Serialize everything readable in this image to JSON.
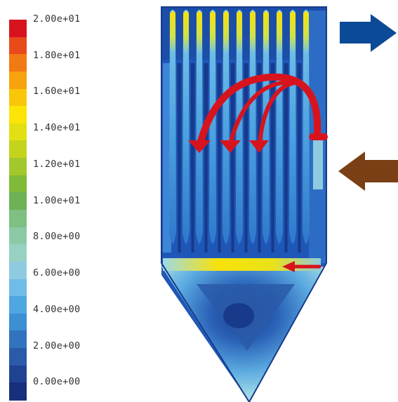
{
  "legend": {
    "labels": [
      "2.00e+01",
      "1.80e+01",
      "1.60e+01",
      "1.40e+01",
      "1.20e+01",
      "1.00e+01",
      "8.00e+00",
      "6.00e+00",
      "4.00e+00",
      "2.00e+00",
      "0.00e+00"
    ],
    "colors": [
      "#d7141e",
      "#e84a1a",
      "#f27a14",
      "#f7a30d",
      "#f9c70a",
      "#fbe406",
      "#e2e012",
      "#c4d41c",
      "#a2c82c",
      "#7fba38",
      "#6db254",
      "#7ebf82",
      "#8ccaa6",
      "#97d1c2",
      "#8fcbe0",
      "#6fbce8",
      "#4fa7e2",
      "#3b8fd2",
      "#3273bf",
      "#2a5aa8",
      "#1f4393",
      "#172f7c"
    ]
  },
  "arrows": {
    "outlet_color": "#0b4a96",
    "inlet_color": "#7a3f14",
    "flow_color": "#d7141e"
  },
  "colors": {
    "background_blue": "#1f57b8",
    "deep_blue": "#173a8a",
    "mid_blue": "#3d86d8",
    "light_blue": "#6fc0ea",
    "cyan": "#9fd9e6",
    "yellow": "#f7e20a",
    "green_yellow": "#cfe24a"
  }
}
